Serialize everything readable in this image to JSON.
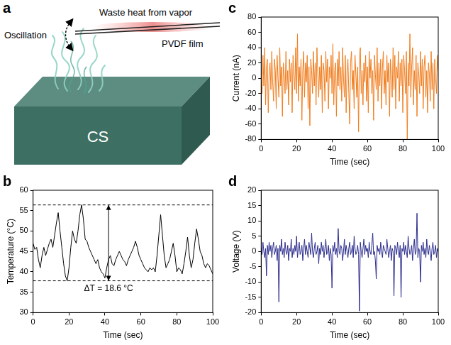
{
  "diagram": {
    "panel": "a",
    "labels": {
      "box": "CS",
      "heat": "Waste heat from vapor",
      "motion": "Oscillation",
      "film": "PVDF film"
    }
  },
  "chart_data": [
    {
      "panel": "b",
      "type": "line",
      "x_label": "Time (sec)",
      "y_label": "Temperature (°C)",
      "color": "#000000",
      "grid": false,
      "xlim": [
        0,
        100
      ],
      "xticks": [
        0,
        20,
        40,
        60,
        80,
        100
      ],
      "ylim": [
        30,
        60
      ],
      "yticks": [
        30,
        35,
        40,
        45,
        50,
        55,
        60
      ],
      "annotation": "ΔT = 18.6 °C",
      "hlines": [
        56.4,
        37.8
      ],
      "x": [
        0,
        1,
        2,
        3,
        4,
        5,
        6,
        7,
        8,
        9,
        10,
        11,
        12,
        13,
        14,
        15,
        16,
        17,
        18,
        19,
        20,
        21,
        22,
        23,
        24,
        25,
        26,
        27,
        28,
        29,
        30,
        31,
        32,
        33,
        34,
        35,
        36,
        37,
        38,
        39,
        40,
        41,
        42,
        43,
        44,
        45,
        46,
        47,
        48,
        49,
        50,
        51,
        52,
        53,
        54,
        55,
        56,
        57,
        58,
        59,
        60,
        61,
        62,
        63,
        64,
        65,
        66,
        67,
        68,
        69,
        70,
        71,
        72,
        73,
        74,
        75,
        76,
        77,
        78,
        79,
        80,
        81,
        82,
        83,
        84,
        85,
        86,
        87,
        88,
        89,
        90,
        91,
        92,
        93,
        94,
        95,
        96,
        97,
        98,
        99,
        100
      ],
      "values": [
        47,
        45.5,
        46,
        43,
        41,
        44,
        46,
        44,
        45.5,
        47,
        48,
        46,
        49,
        52,
        54.5,
        50,
        46,
        42,
        39,
        37.8,
        41,
        46,
        50,
        48,
        47,
        50,
        54,
        56.4,
        53,
        48,
        47.5,
        46,
        45,
        44,
        43,
        42,
        43,
        41,
        40,
        39.5,
        38.5,
        41,
        43,
        44,
        42,
        41.5,
        43,
        44,
        45,
        44,
        43,
        42.5,
        41.5,
        43,
        44,
        45,
        46,
        47.5,
        46,
        44,
        43,
        42,
        41,
        40.5,
        40,
        41,
        40.5,
        41,
        40,
        44,
        49,
        54,
        49,
        44,
        41,
        42,
        43,
        45,
        47,
        44,
        40,
        41,
        40.5,
        39.5,
        42,
        45,
        48.5,
        44,
        41,
        43,
        47,
        50.5,
        48,
        45,
        44,
        42,
        41,
        42,
        41.5,
        40.5,
        39.5
      ]
    },
    {
      "panel": "c",
      "type": "line",
      "x_label": "Time (sec)",
      "y_label": "Current (nA)",
      "color": "#f07d1e",
      "grid": false,
      "xlim": [
        0,
        100
      ],
      "xticks": [
        0,
        20,
        40,
        60,
        80,
        100
      ],
      "ylim": [
        -80,
        80
      ],
      "yticks": [
        -80,
        -60,
        -40,
        -20,
        0,
        20,
        40,
        60,
        80
      ],
      "x": [
        0,
        0.5,
        1,
        1.5,
        2,
        2.5,
        3,
        3.5,
        4,
        4.5,
        5,
        5.5,
        6,
        6.5,
        7,
        7.5,
        8,
        8.5,
        9,
        9.5,
        10,
        10.5,
        11,
        11.5,
        12,
        12.5,
        13,
        13.5,
        14,
        14.5,
        15,
        15.5,
        16,
        16.5,
        17,
        17.5,
        18,
        18.5,
        19,
        19.5,
        20,
        20.5,
        21,
        21.5,
        22,
        22.5,
        23,
        23.5,
        24,
        24.5,
        25,
        25.5,
        26,
        26.5,
        27,
        27.5,
        28,
        28.5,
        29,
        29.5,
        30,
        30.5,
        31,
        31.5,
        32,
        32.5,
        33,
        33.5,
        34,
        34.5,
        35,
        35.5,
        36,
        36.5,
        37,
        37.5,
        38,
        38.5,
        39,
        39.5,
        40,
        40.5,
        41,
        41.5,
        42,
        42.5,
        43,
        43.5,
        44,
        44.5,
        45,
        45.5,
        46,
        46.5,
        47,
        47.5,
        48,
        48.5,
        49,
        49.5,
        50,
        50.5,
        51,
        51.5,
        52,
        52.5,
        53,
        53.5,
        54,
        54.5,
        55,
        55.5,
        56,
        56.5,
        57,
        57.5,
        58,
        58.5,
        59,
        59.5,
        60,
        60.5,
        61,
        61.5,
        62,
        62.5,
        63,
        63.5,
        64,
        64.5,
        65,
        65.5,
        66,
        66.5,
        67,
        67.5,
        68,
        68.5,
        69,
        69.5,
        70,
        70.5,
        71,
        71.5,
        72,
        72.5,
        73,
        73.5,
        74,
        74.5,
        75,
        75.5,
        76,
        76.5,
        77,
        77.5,
        78,
        78.5,
        79,
        79.5,
        80,
        80.5,
        81,
        81.5,
        82,
        82.5,
        83,
        83.5,
        84,
        84.5,
        85,
        85.5,
        86,
        86.5,
        87,
        87.5,
        88,
        88.5,
        89,
        89.5,
        90,
        90.5,
        91,
        91.5,
        92,
        92.5,
        93,
        93.5,
        94,
        94.5,
        95,
        95.5,
        96,
        96.5,
        97,
        97.5,
        98,
        98.5,
        99,
        99.5,
        100
      ],
      "values": [
        5,
        -20,
        30,
        -10,
        40,
        -35,
        15,
        25,
        -45,
        10,
        20,
        -15,
        35,
        -5,
        -30,
        25,
        10,
        -40,
        30,
        0,
        -25,
        40,
        -10,
        15,
        -50,
        20,
        5,
        -20,
        35,
        -15,
        10,
        -35,
        25,
        -5,
        20,
        -45,
        30,
        5,
        -15,
        40,
        -20,
        58,
        -30,
        15,
        -10,
        25,
        -55,
        10,
        35,
        -25,
        20,
        -5,
        30,
        -40,
        15,
        -62,
        25,
        10,
        -20,
        35,
        -10,
        20,
        -35,
        40,
        5,
        -25,
        15,
        -15,
        30,
        -45,
        20,
        10,
        -30,
        35,
        -5,
        25,
        -40,
        15,
        0,
        30,
        -20,
        45,
        -35,
        10,
        20,
        -50,
        25,
        -10,
        35,
        -15,
        15,
        -30,
        40,
        0,
        -25,
        30,
        -45,
        10,
        25,
        -20,
        -60,
        20,
        35,
        -15,
        10,
        -40,
        30,
        5,
        -25,
        15,
        -70,
        25,
        40,
        -20,
        10,
        -35,
        20,
        -5,
        30,
        -30,
        15,
        -45,
        35,
        0,
        25,
        -20,
        10,
        -55,
        30,
        5,
        -15,
        40,
        -30,
        20,
        -10,
        25,
        -40,
        15,
        35,
        -20,
        10,
        -35,
        30,
        -5,
        20,
        -50,
        25,
        5,
        -25,
        40,
        -15,
        30,
        -40,
        15,
        0,
        35,
        -30,
        20,
        -10,
        25,
        -45,
        30,
        10,
        -20,
        35,
        -80,
        20,
        -10,
        58,
        -25,
        15,
        40,
        -35,
        10,
        -15,
        30,
        -50,
        20,
        5,
        -20,
        35,
        -10,
        25,
        -40,
        15,
        30,
        -25,
        10,
        -45,
        20,
        5,
        -30,
        35,
        -15,
        20,
        -40,
        25,
        0,
        -20,
        30,
        10
      ]
    },
    {
      "panel": "d",
      "type": "line",
      "x_label": "Time (sec)",
      "y_label": "Voltage (V)",
      "color": "#2e2e8f",
      "grid": false,
      "xlim": [
        0,
        100
      ],
      "xticks": [
        0,
        20,
        40,
        60,
        80,
        100
      ],
      "ylim": [
        -20,
        20
      ],
      "yticks": [
        -20,
        -15,
        -10,
        -5,
        0,
        5,
        10,
        15,
        20
      ],
      "x": [
        0,
        0.5,
        1,
        1.5,
        2,
        2.5,
        3,
        3.5,
        4,
        4.5,
        5,
        5.5,
        6,
        6.5,
        7,
        7.5,
        8,
        8.5,
        9,
        9.5,
        10,
        10.5,
        11,
        11.5,
        12,
        12.5,
        13,
        13.5,
        14,
        14.5,
        15,
        15.5,
        16,
        16.5,
        17,
        17.5,
        18,
        18.5,
        19,
        19.5,
        20,
        20.5,
        21,
        21.5,
        22,
        22.5,
        23,
        23.5,
        24,
        24.5,
        25,
        25.5,
        26,
        26.5,
        27,
        27.5,
        28,
        28.5,
        29,
        29.5,
        30,
        30.5,
        31,
        31.5,
        32,
        32.5,
        33,
        33.5,
        34,
        34.5,
        35,
        35.5,
        36,
        36.5,
        37,
        37.5,
        38,
        38.5,
        39,
        39.5,
        40,
        40.5,
        41,
        41.5,
        42,
        42.5,
        43,
        43.5,
        44,
        44.5,
        45,
        45.5,
        46,
        46.5,
        47,
        47.5,
        48,
        48.5,
        49,
        49.5,
        50,
        50.5,
        51,
        51.5,
        52,
        52.5,
        53,
        53.5,
        54,
        54.5,
        55,
        55.5,
        56,
        56.5,
        57,
        57.5,
        58,
        58.5,
        59,
        59.5,
        60,
        60.5,
        61,
        61.5,
        62,
        62.5,
        63,
        63.5,
        64,
        64.5,
        65,
        65.5,
        66,
        66.5,
        67,
        67.5,
        68,
        68.5,
        69,
        69.5,
        70,
        70.5,
        71,
        71.5,
        72,
        72.5,
        73,
        73.5,
        74,
        74.5,
        75,
        75.5,
        76,
        76.5,
        77,
        77.5,
        78,
        78.5,
        79,
        79.5,
        80,
        80.5,
        81,
        81.5,
        82,
        82.5,
        83,
        83.5,
        84,
        84.5,
        85,
        85.5,
        86,
        86.5,
        87,
        87.5,
        88,
        88.5,
        89,
        89.5,
        90,
        90.5,
        91,
        91.5,
        92,
        92.5,
        93,
        93.5,
        94,
        94.5,
        95,
        95.5,
        96,
        96.5,
        97,
        97.5,
        98,
        98.5,
        99,
        99.5,
        100
      ],
      "values": [
        2,
        -1,
        3,
        0,
        -2,
        1,
        -8,
        2,
        -1,
        3,
        0,
        2,
        -2,
        1,
        3,
        -1,
        0,
        2,
        -3,
        1,
        -16.5,
        2,
        0,
        4,
        -1,
        1,
        -2,
        3,
        0,
        -1,
        2,
        -3,
        1,
        0,
        4,
        -2,
        1,
        -1,
        2,
        0,
        5,
        -2,
        1,
        3,
        -1,
        0,
        2,
        -3,
        1,
        4,
        -1,
        2,
        0,
        -2,
        3,
        1,
        -1,
        6,
        0,
        -2,
        1,
        3,
        -1,
        0,
        2,
        -4,
        1,
        -1,
        3,
        0,
        2,
        -2,
        1,
        4,
        -1,
        0,
        2,
        -3,
        1,
        -1,
        -12,
        2,
        0,
        3,
        -1,
        1,
        -2,
        7.5,
        0,
        -1,
        2,
        1,
        -3,
        0,
        4,
        -1,
        2,
        0,
        -2,
        1,
        3,
        -1,
        0,
        2,
        -2,
        5,
        1,
        -1,
        0,
        2,
        -1,
        -19.5,
        3,
        0,
        -2,
        1,
        4,
        -1,
        2,
        0,
        1,
        -2,
        3,
        0,
        -1,
        2,
        6,
        -1,
        0,
        -3,
        -9,
        2,
        0,
        1,
        -1,
        3,
        0,
        -2,
        2,
        1,
        0,
        -1,
        4,
        1,
        -2,
        0,
        2,
        -3,
        1,
        0,
        -14.5,
        2,
        1,
        -1,
        3,
        0,
        -2,
        2,
        -15,
        1,
        0,
        3,
        -1,
        2,
        0,
        -2,
        5,
        1,
        -1,
        0,
        2,
        -3,
        1,
        4,
        -1,
        0,
        12.5,
        -2,
        1,
        0,
        -10,
        2,
        0,
        3,
        -1,
        1,
        -2,
        4,
        0,
        -1,
        2,
        0,
        -3,
        1,
        3,
        -1,
        0,
        2,
        -2,
        1,
        0
      ]
    }
  ]
}
